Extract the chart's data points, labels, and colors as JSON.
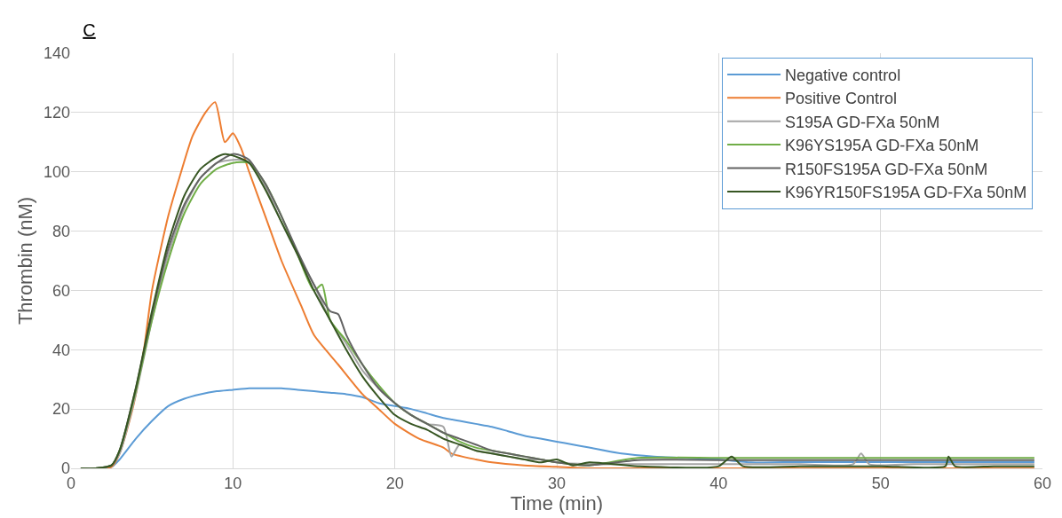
{
  "chart_data": {
    "type": "line",
    "title": "C",
    "xlabel": "Time (min)",
    "ylabel": "Thrombin (nM)",
    "xlim": [
      0,
      60
    ],
    "xticks": [
      0,
      10,
      20,
      30,
      40,
      50,
      60
    ],
    "ylim": [
      0,
      140
    ],
    "yticks": [
      0,
      20,
      40,
      60,
      80,
      100,
      120,
      140
    ],
    "grid": true,
    "legend": "top right",
    "marker": "none",
    "line_style": "solid",
    "series": [
      {
        "name": "Negative control",
        "color": "#5b9bd5",
        "x": [
          0.6,
          1.5,
          2.5,
          3,
          4,
          5,
          6,
          7,
          8,
          9,
          10,
          11,
          12,
          13,
          14,
          15,
          16,
          17,
          18,
          19,
          20,
          21,
          22,
          23,
          24,
          25,
          26,
          27,
          28,
          29,
          30,
          31,
          32,
          34,
          36,
          38,
          40,
          42,
          44,
          46,
          48,
          50,
          52,
          54,
          56,
          58,
          59.5
        ],
        "values": [
          0,
          0,
          0.5,
          3,
          10,
          16,
          21,
          23.5,
          25,
          26,
          26.5,
          27,
          27,
          27,
          26.5,
          26,
          25.5,
          25,
          24,
          22,
          21,
          20,
          18.5,
          17,
          16,
          15,
          14,
          12.5,
          11,
          10,
          9,
          8,
          7,
          5,
          4,
          3.5,
          3,
          2,
          2.1,
          2.1,
          2.1,
          2.1,
          2.1,
          2.1,
          2.1,
          2.1,
          2.1
        ]
      },
      {
        "name": "Positive Control",
        "color": "#ed7d31",
        "x": [
          0.6,
          1.5,
          2.5,
          3,
          3.8,
          4.5,
          5,
          6,
          6.8,
          7.5,
          8.3,
          8.9,
          9.5,
          10,
          10.5,
          11,
          12,
          13,
          14.2,
          15,
          16.5,
          18,
          19,
          20,
          21.5,
          23,
          23.5,
          25,
          26,
          28,
          30,
          32,
          35,
          40,
          45,
          50,
          55,
          59.5
        ],
        "values": [
          0,
          0,
          0.5,
          5,
          20,
          40,
          60,
          85,
          100,
          112,
          120,
          123.5,
          110,
          113,
          108,
          100,
          85,
          70,
          55,
          45,
          35,
          25,
          20,
          15,
          10,
          7,
          5,
          3,
          2,
          1,
          0.5,
          0,
          0,
          0,
          0,
          0,
          0,
          0
        ]
      },
      {
        "name": "S195A GD-FXa 50nM",
        "color": "#a5a5a5",
        "x": [
          0.6,
          1.5,
          2.5,
          3,
          4,
          5,
          6,
          7,
          8,
          9,
          10,
          10.5,
          11,
          12,
          13,
          14,
          15,
          16,
          17,
          18,
          19,
          20,
          21,
          22,
          23,
          23.5,
          24,
          25,
          26,
          27,
          28,
          29,
          30,
          32,
          35,
          40,
          45,
          48.3,
          48.8,
          49.3,
          52,
          55,
          59.5
        ],
        "values": [
          0,
          0,
          1,
          5,
          25,
          50,
          72,
          88,
          98,
          103,
          104,
          104,
          103,
          95,
          83,
          72,
          62,
          50,
          42,
          33,
          27,
          22,
          18,
          15,
          14,
          4,
          8,
          6,
          5,
          4,
          3,
          3,
          2,
          1.4,
          1.4,
          1.4,
          1.4,
          1.4,
          5,
          1.4,
          1.4,
          1.4,
          1.4
        ]
      },
      {
        "name": "K96YS195A GD-FXa 50nM",
        "color": "#70ad47",
        "x": [
          0.6,
          1.5,
          2.5,
          3,
          4,
          5,
          6,
          7,
          8,
          9,
          10,
          11,
          12,
          13,
          14,
          15,
          15.5,
          16,
          17,
          18,
          19,
          20,
          21,
          22,
          23,
          24,
          25,
          26,
          27,
          28,
          29,
          30,
          32,
          35,
          40,
          45,
          50,
          55,
          59.5
        ],
        "values": [
          0,
          0,
          1,
          6,
          26,
          50,
          70,
          86,
          96,
          101,
          103,
          103,
          96,
          85,
          72,
          60,
          62,
          50,
          43,
          35,
          28,
          22,
          18,
          15,
          12,
          9,
          7,
          6,
          5,
          4,
          3,
          2,
          1,
          3.5,
          3.5,
          3.5,
          3.5,
          3.5,
          3.5
        ]
      },
      {
        "name": "R150FS195A GD-FXa 50nM",
        "color": "#636363",
        "x": [
          0.6,
          1.5,
          2.5,
          3,
          4,
          5,
          6,
          7,
          8,
          9,
          10,
          10.7,
          11,
          12,
          13,
          14,
          15,
          16,
          16.5,
          17,
          18,
          19,
          20,
          21,
          22,
          23,
          24,
          25,
          26,
          27,
          28,
          29,
          30,
          32,
          35,
          40,
          45,
          50,
          55,
          59.5
        ],
        "values": [
          0,
          0,
          1,
          6,
          27,
          52,
          74,
          89,
          98,
          103,
          106,
          105,
          104,
          96,
          85,
          73,
          62,
          53,
          52,
          45,
          35,
          27,
          22,
          18,
          15,
          12,
          10,
          8,
          6,
          5,
          4,
          3,
          2,
          1,
          2.8,
          2.8,
          2.8,
          2.8,
          2.8,
          2.8
        ]
      },
      {
        "name": "K96YR150FS195A GD-FXa 50nM",
        "color": "#375623",
        "x": [
          0.6,
          1.5,
          2.5,
          3,
          4,
          5,
          6,
          7,
          8,
          9,
          9.5,
          10,
          11,
          12,
          13,
          14,
          15,
          16,
          17,
          18,
          19,
          20,
          21,
          22,
          23,
          24,
          25,
          26,
          27,
          28,
          29,
          30,
          31,
          32,
          35,
          40,
          40.8,
          41.5,
          45,
          50,
          54,
          54.2,
          54.6,
          57,
          59.5
        ],
        "values": [
          0,
          0,
          1,
          6,
          27,
          53,
          76,
          92,
          101,
          105,
          106,
          105.5,
          103,
          94,
          83,
          72,
          60,
          50,
          40,
          31,
          24,
          18,
          15,
          13,
          10,
          8,
          6,
          5,
          4,
          3,
          2,
          3,
          1,
          2,
          0.7,
          0.7,
          4,
          0.7,
          0.7,
          0.7,
          0.7,
          4,
          0.7,
          0.7,
          0.7
        ]
      }
    ]
  }
}
